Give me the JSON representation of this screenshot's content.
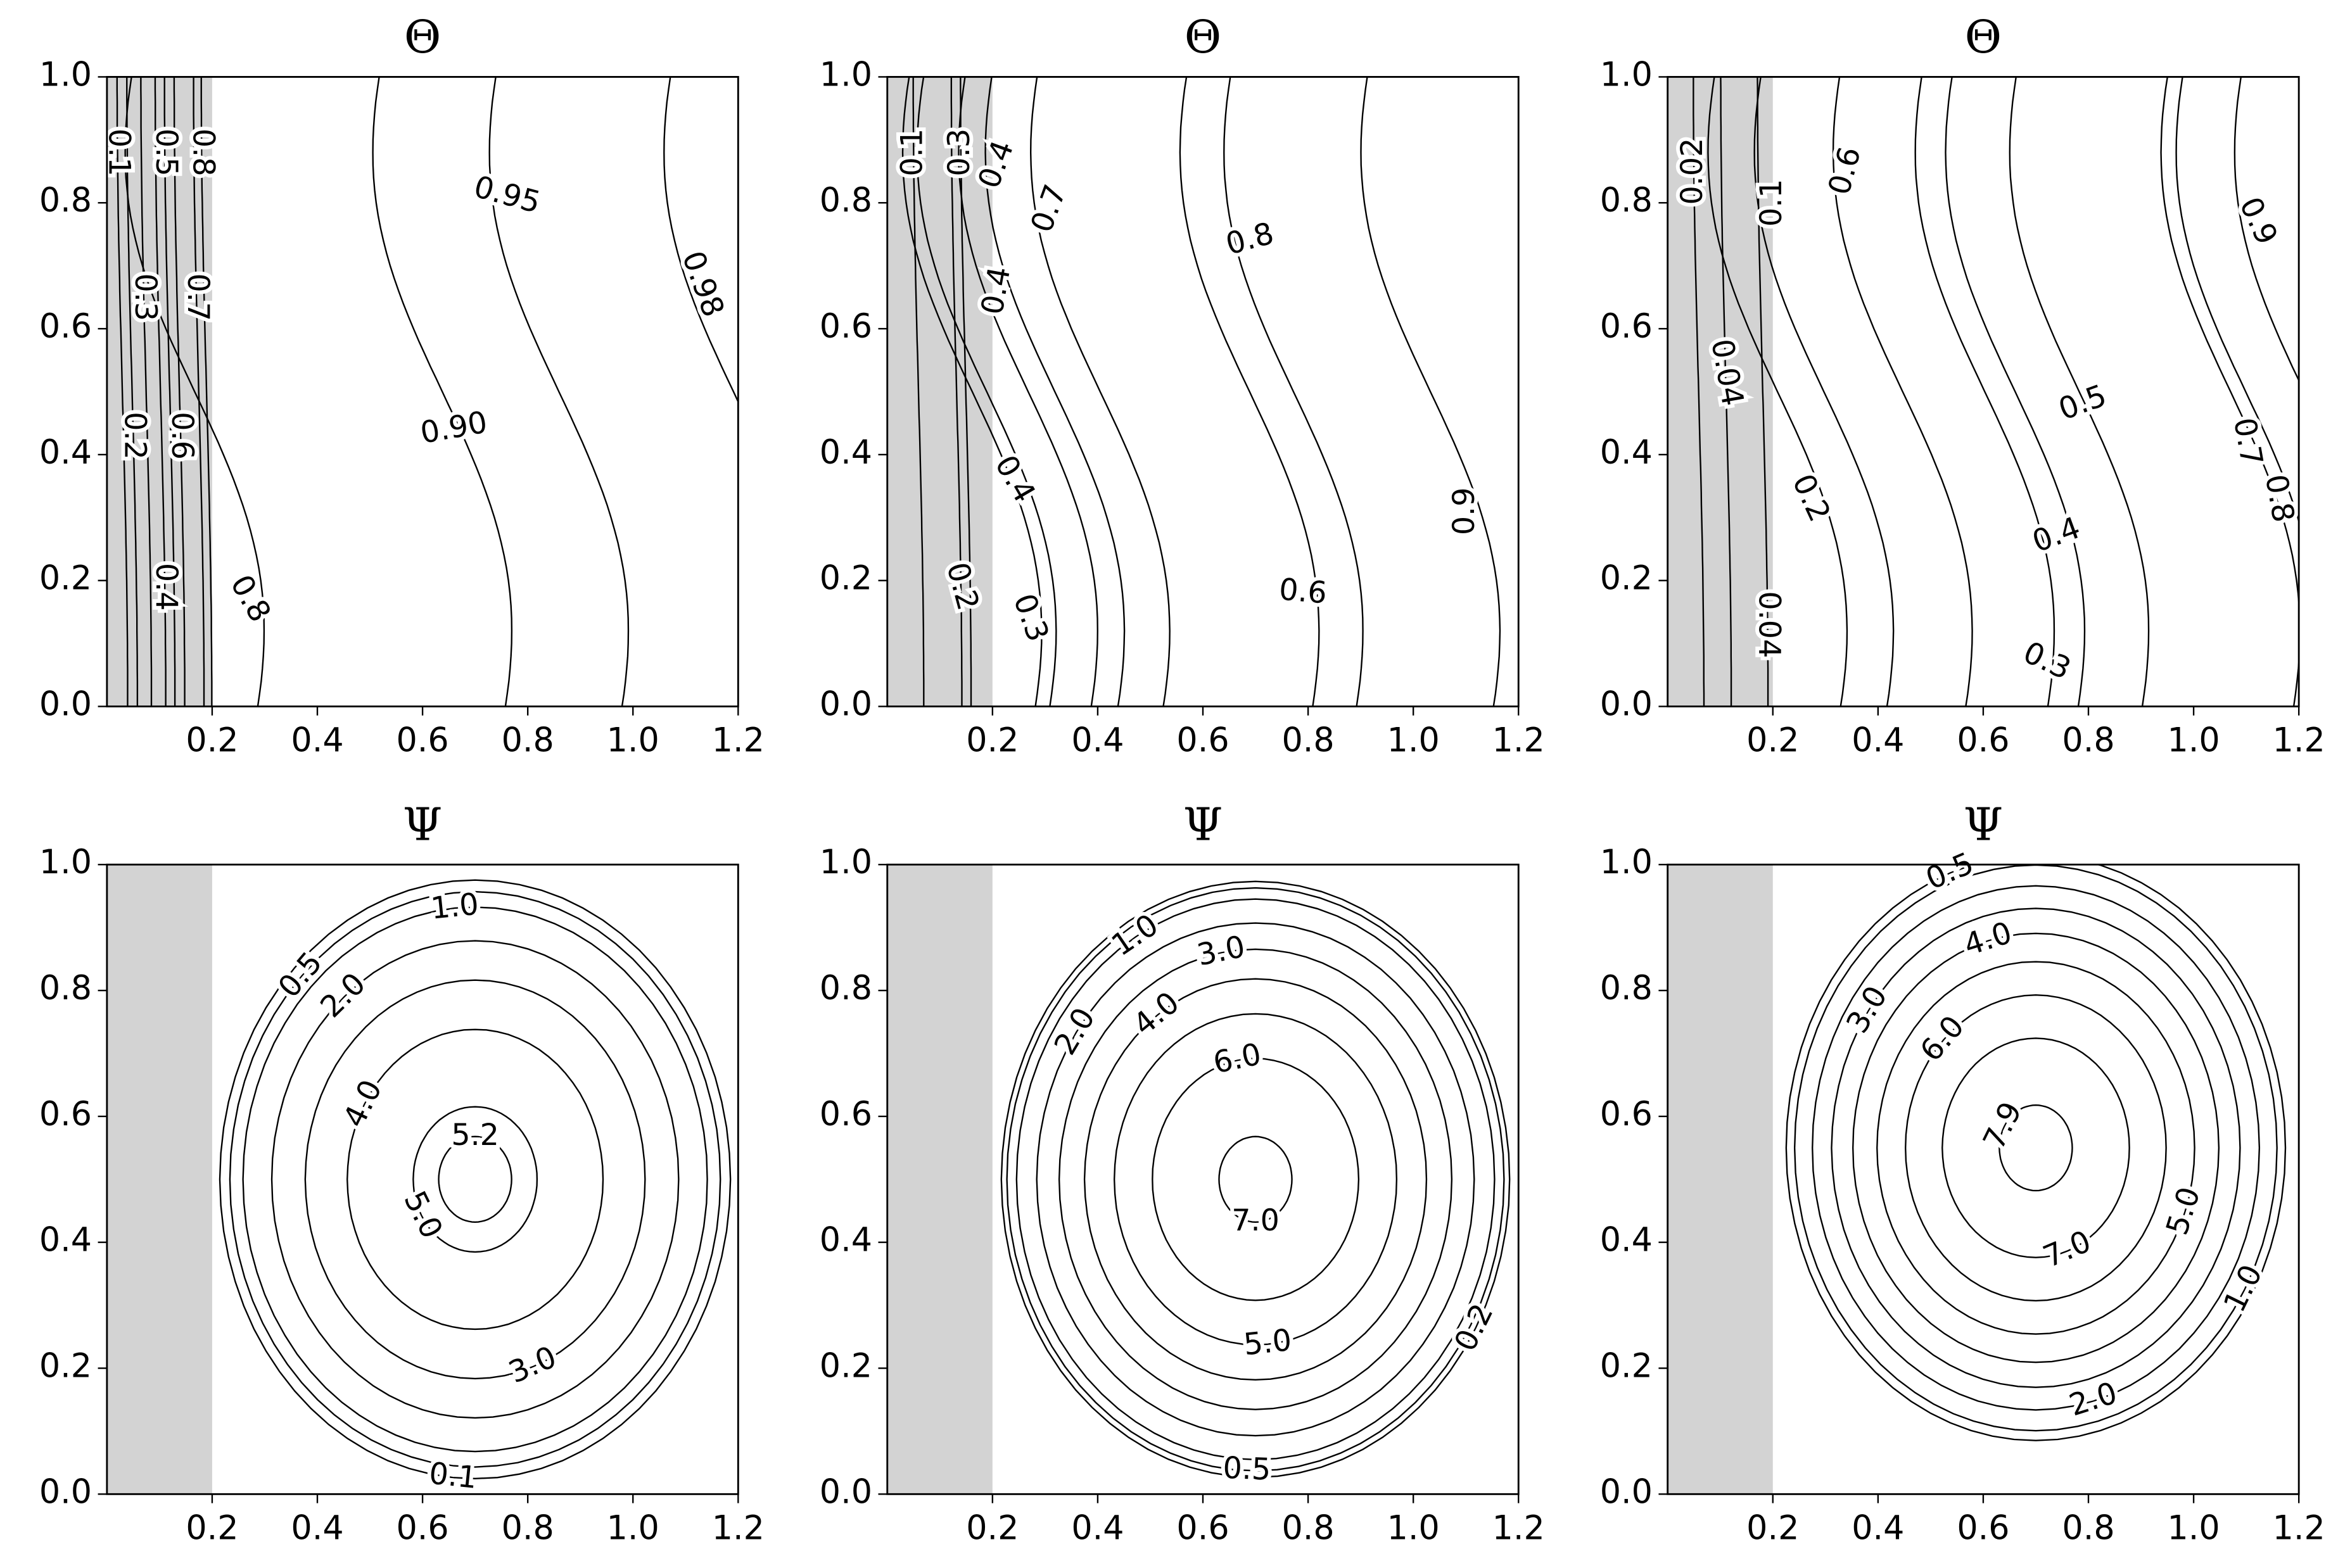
{
  "chart_data": [
    {
      "type": "contour-theta",
      "title": "Θ",
      "xlim": [
        0,
        1.2
      ],
      "ylim": [
        0,
        1
      ],
      "xticks": [
        0.2,
        0.4,
        0.6,
        0.8,
        {
          "value": 1,
          "label": "1.0"
        },
        1.2
      ],
      "yticks": [
        {
          "value": 0,
          "label": "0.0"
        },
        0.2,
        0.4,
        0.6,
        0.8,
        {
          "value": 1,
          "label": "1.0"
        }
      ],
      "shade": [
        0,
        0.2
      ],
      "shade_color": "#d3d3d3",
      "line_color": "#000000",
      "values": [
        0.1,
        0.5,
        0.8,
        0.3,
        0.7,
        0.2,
        0.6,
        0.4,
        0.8,
        0.95,
        0.9,
        0.98
      ],
      "value_labels": [
        "0.1",
        "0.5",
        "0.8",
        "0.3",
        "0.7",
        "0.2",
        "0.6",
        "0.4",
        "0.8",
        "0.95",
        "0.90",
        "0.98"
      ]
    },
    {
      "type": "contour-theta",
      "title": "Θ",
      "xlim": [
        0,
        1.2
      ],
      "ylim": [
        0,
        1
      ],
      "xticks": [
        0.2,
        0.4,
        0.6,
        0.8,
        {
          "value": 1,
          "label": "1.0"
        },
        1.2
      ],
      "yticks": [
        {
          "value": 0,
          "label": "0.0"
        },
        0.2,
        0.4,
        0.6,
        0.8,
        {
          "value": 1,
          "label": "1.0"
        }
      ],
      "shade": [
        0,
        0.2
      ],
      "shade_color": "#d3d3d3",
      "line_color": "#000000",
      "values": [
        0.1,
        0.3,
        0.4,
        0.7,
        0.4,
        0.8,
        0.4,
        0.2,
        0.3,
        0.6,
        0.9
      ]
    },
    {
      "type": "contour-theta",
      "title": "Θ",
      "xlim": [
        0,
        1.2
      ],
      "ylim": [
        0,
        1
      ],
      "xticks": [
        0.2,
        0.4,
        0.6,
        0.8,
        {
          "value": 1,
          "label": "1.0"
        },
        1.2
      ],
      "yticks": [
        {
          "value": 0,
          "label": "0.0"
        },
        0.2,
        0.4,
        0.6,
        0.8,
        {
          "value": 1,
          "label": "1.0"
        }
      ],
      "shade": [
        0,
        0.2
      ],
      "shade_color": "#d3d3d3",
      "line_color": "#000000",
      "values": [
        0.02,
        0.1,
        0.6,
        0.9,
        0.04,
        0.5,
        0.7,
        0.8,
        0.2,
        0.4,
        0.04,
        0.3
      ]
    },
    {
      "type": "contour-psi",
      "title": "Ψ",
      "xlim": [
        0,
        1.2
      ],
      "ylim": [
        0,
        1
      ],
      "xticks": [
        0.2,
        0.4,
        0.6,
        0.8,
        {
          "value": 1,
          "label": "1.0"
        },
        1.2
      ],
      "yticks": [
        {
          "value": 0,
          "label": "0.0"
        },
        0.2,
        0.4,
        0.6,
        0.8,
        {
          "value": 1,
          "label": "1.0"
        }
      ],
      "shade": [
        0,
        0.2
      ],
      "shade_color": "#d3d3d3",
      "line_color": "#000000",
      "values": [
        0.5,
        1.0,
        2.0,
        4.0,
        5.2,
        5.0,
        3.0,
        0.1
      ],
      "value_labels": [
        "0.5",
        "1.0",
        "2.0",
        "4.0",
        "5.2",
        "5.0",
        "3.0",
        "0.1"
      ]
    },
    {
      "type": "contour-psi",
      "title": "Ψ",
      "xlim": [
        0,
        1.2
      ],
      "ylim": [
        0,
        1
      ],
      "xticks": [
        0.2,
        0.4,
        0.6,
        0.8,
        {
          "value": 1,
          "label": "1.0"
        },
        1.2
      ],
      "yticks": [
        {
          "value": 0,
          "label": "0.0"
        },
        0.2,
        0.4,
        0.6,
        0.8,
        {
          "value": 1,
          "label": "1.0"
        }
      ],
      "shade": [
        0,
        0.2
      ],
      "shade_color": "#d3d3d3",
      "line_color": "#000000",
      "values": [
        1.0,
        3.0,
        2.0,
        4.0,
        6.0,
        7.0,
        5.0,
        0.2,
        0.5
      ],
      "value_labels": [
        "1.0",
        "3.0",
        "2.0",
        "4.0",
        "6.0",
        "7.0",
        "5.0",
        "0.2",
        "0.5"
      ]
    },
    {
      "type": "contour-psi",
      "title": "Ψ",
      "xlim": [
        0,
        1.2
      ],
      "ylim": [
        0,
        1
      ],
      "xticks": [
        0.2,
        0.4,
        0.6,
        0.8,
        {
          "value": 1,
          "label": "1.0"
        },
        1.2
      ],
      "yticks": [
        {
          "value": 0,
          "label": "0.0"
        },
        0.2,
        0.4,
        0.6,
        0.8,
        {
          "value": 1,
          "label": "1.0"
        }
      ],
      "shade": [
        0,
        0.2
      ],
      "shade_color": "#d3d3d3",
      "line_color": "#000000",
      "values": [
        0.5,
        4.0,
        3.0,
        6.0,
        7.9,
        5.0,
        7.0,
        1.0,
        2.0
      ],
      "value_labels": [
        "0.5",
        "4.0",
        "3.0",
        "6.0",
        "7.9",
        "5.0",
        "7.0",
        "1.0",
        "2.0"
      ]
    }
  ]
}
